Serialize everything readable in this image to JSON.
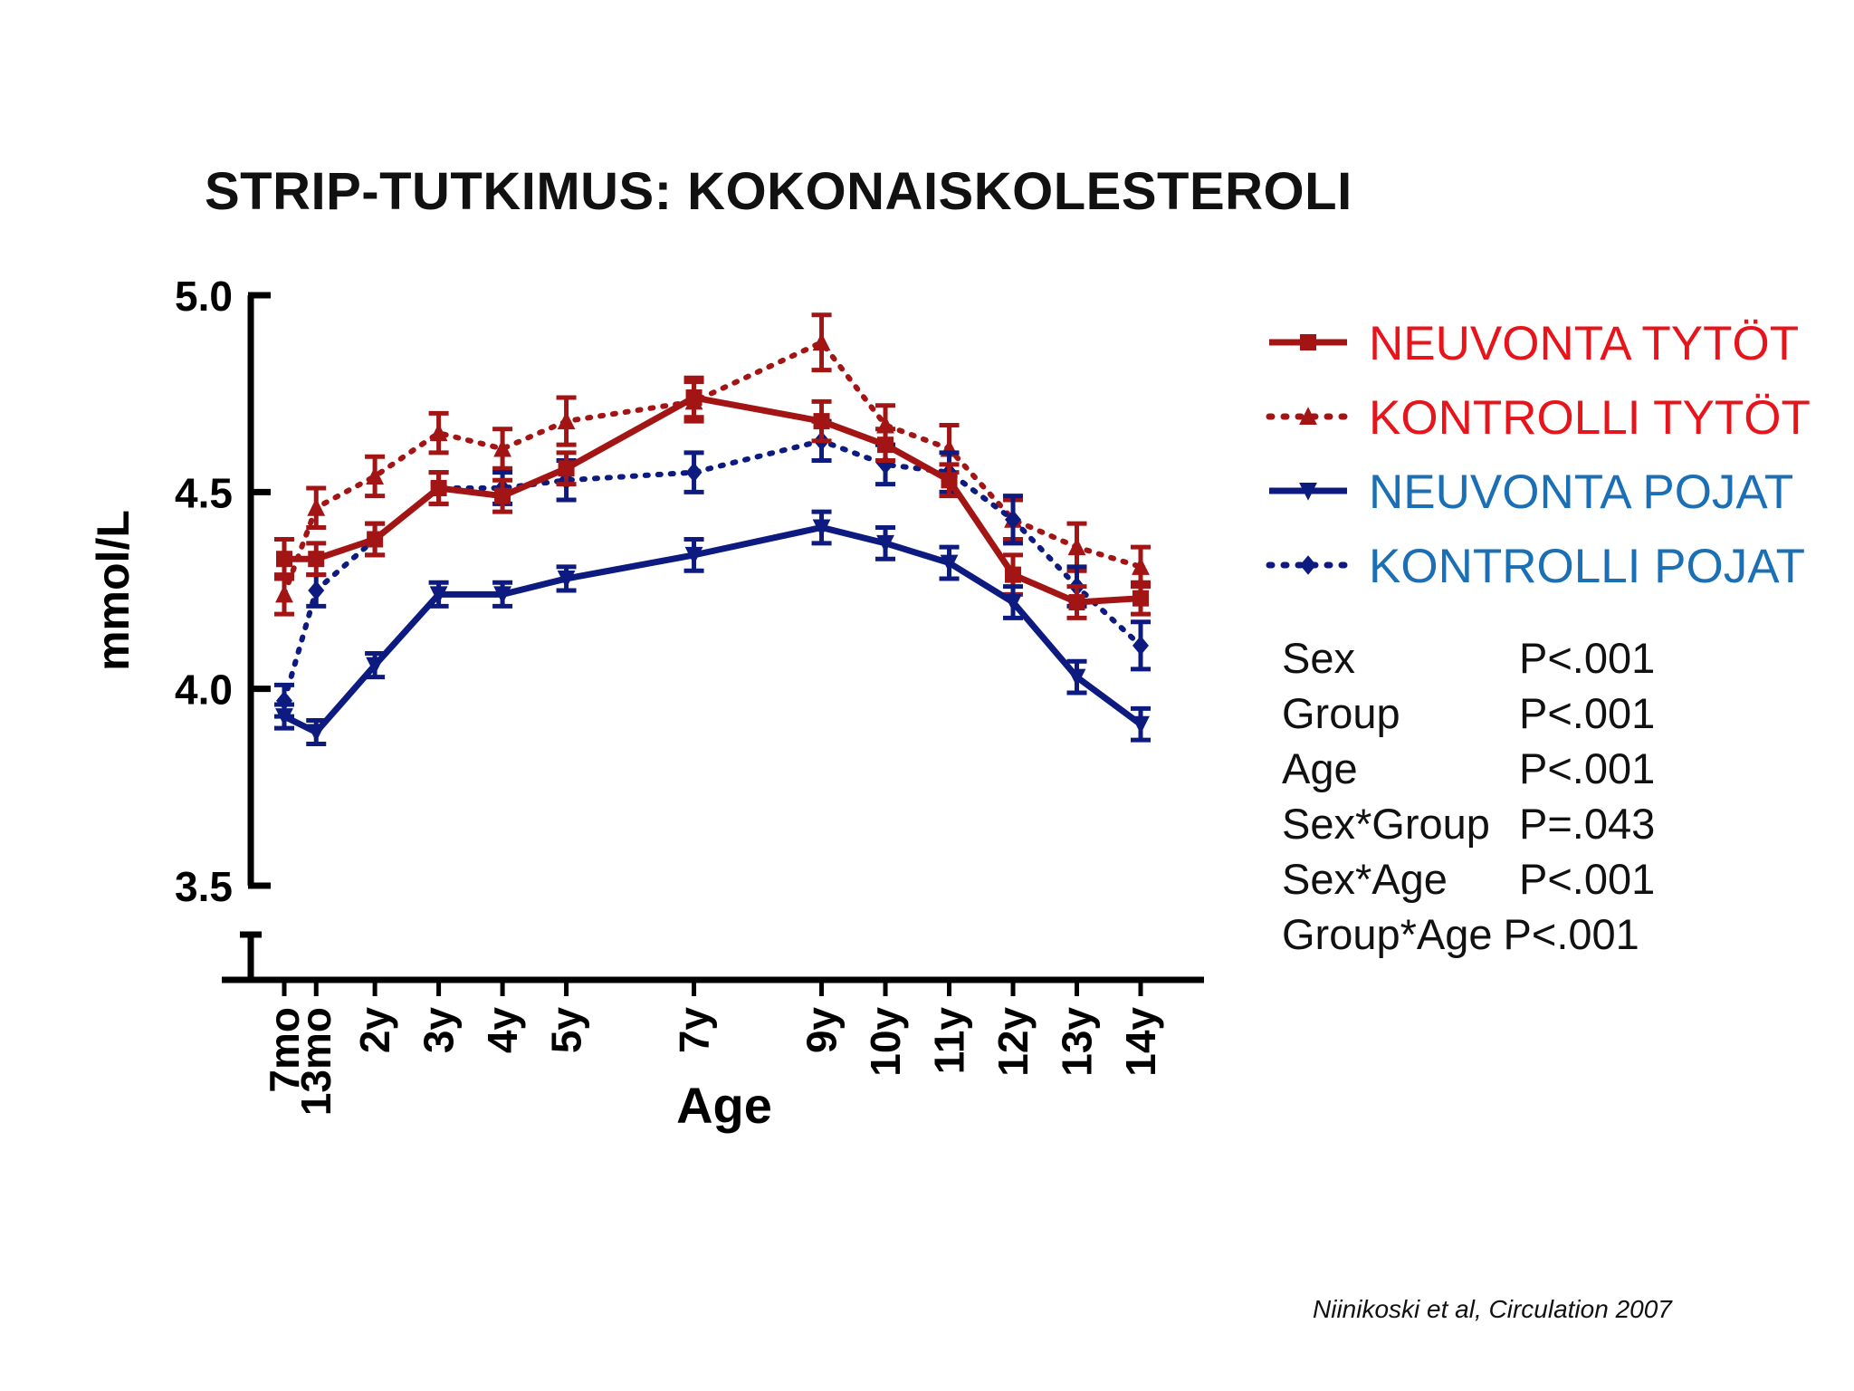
{
  "slide_title": "STRIP-TUTKIMUS: KOKONAISKOLESTEROLI",
  "citation": "Niinikoski et al, Circulation 2007",
  "stats": [
    {
      "name": "Sex",
      "p": "P<.001"
    },
    {
      "name": "Group",
      "p": "P<.001"
    },
    {
      "name": "Age",
      "p": "P<.001"
    },
    {
      "name": "Sex*Group",
      "p": "P=.043"
    },
    {
      "name": "Sex*Age",
      "p": "P<.001"
    },
    {
      "name": "Group*Age",
      "p": "P<.001"
    }
  ],
  "colors": {
    "girls": "#a31515",
    "boys": "#0d1a80",
    "legend_girls_text": "#e8141b",
    "legend_boys_text": "#1b6fb5"
  },
  "chart_data": {
    "type": "line",
    "title": "",
    "xlabel": "Age",
    "ylabel": "mmol/L",
    "ylim": [
      3.5,
      5.0
    ],
    "yticks": [
      "3.5",
      "4.0",
      "4.5",
      "5.0"
    ],
    "categories": [
      "7mo",
      "13mo",
      "2y",
      "3y",
      "4y",
      "5y",
      "7y",
      "9y",
      "10y",
      "11y",
      "12y",
      "13y",
      "14y"
    ],
    "x_years": [
      0.58,
      1.08,
      2,
      3,
      4,
      5,
      7,
      9,
      10,
      11,
      12,
      13,
      14
    ],
    "series": [
      {
        "name": "NEUVONTA TYTÖT",
        "color": "#a31515",
        "style": "solid",
        "marker": "square",
        "values": [
          4.33,
          4.33,
          4.38,
          4.51,
          4.49,
          4.56,
          4.74,
          4.68,
          4.62,
          4.53,
          4.29,
          4.22,
          4.23
        ],
        "err": [
          0.05,
          0.04,
          0.04,
          0.04,
          0.04,
          0.04,
          0.05,
          0.05,
          0.04,
          0.04,
          0.05,
          0.04,
          0.04
        ]
      },
      {
        "name": "KONTROLLI TYTÖT",
        "color": "#a31515",
        "style": "dotted",
        "marker": "triangle-up",
        "values": [
          4.24,
          4.46,
          4.54,
          4.65,
          4.61,
          4.68,
          4.73,
          4.88,
          4.67,
          4.61,
          4.43,
          4.36,
          4.31
        ],
        "err": [
          0.05,
          0.05,
          0.05,
          0.05,
          0.05,
          0.06,
          0.05,
          0.07,
          0.05,
          0.06,
          0.05,
          0.06,
          0.05
        ]
      },
      {
        "name": "NEUVONTA POJAT",
        "color": "#0d1a80",
        "style": "solid",
        "marker": "triangle-down",
        "values": [
          3.93,
          3.89,
          4.06,
          4.24,
          4.24,
          4.28,
          4.34,
          4.41,
          4.37,
          4.32,
          4.22,
          4.03,
          3.91
        ],
        "err": [
          0.03,
          0.03,
          0.03,
          0.03,
          0.03,
          0.03,
          0.04,
          0.04,
          0.04,
          0.04,
          0.04,
          0.04,
          0.04
        ]
      },
      {
        "name": "KONTROLLI POJAT",
        "color": "#0d1a80",
        "style": "dotted",
        "marker": "diamond",
        "values": [
          3.97,
          4.25,
          4.38,
          4.51,
          4.51,
          4.53,
          4.55,
          4.63,
          4.57,
          4.55,
          4.43,
          4.26,
          4.11
        ],
        "err": [
          0.04,
          0.04,
          0.04,
          0.04,
          0.04,
          0.05,
          0.05,
          0.05,
          0.05,
          0.05,
          0.06,
          0.05,
          0.06
        ]
      }
    ],
    "grid": false,
    "legend_position": "right"
  }
}
